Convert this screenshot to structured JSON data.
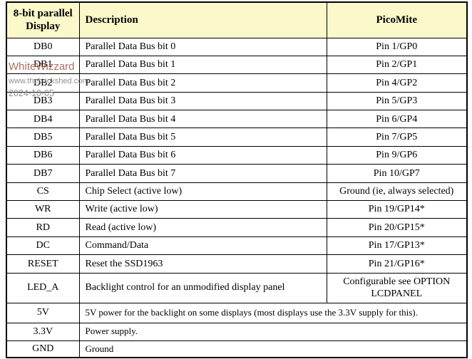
{
  "watermark": {
    "name": "WhiteWizzard",
    "site": "www.thebackshed.com",
    "date": "2024-10-05"
  },
  "table": {
    "headers": {
      "col1": "8-bit parallel Display",
      "col2": "Description",
      "col3": "PicoMite"
    },
    "rows": [
      {
        "signal": "DB0",
        "description": "Parallel Data Bus bit 0",
        "picomite": "Pin 1/GP0"
      },
      {
        "signal": "DB1",
        "description": "Parallel Data Bus bit 1",
        "picomite": "Pin 2/GP1"
      },
      {
        "signal": "DB2",
        "description": "Parallel Data Bus bit 2",
        "picomite": "Pin 4/GP2"
      },
      {
        "signal": "DB3",
        "description": "Parallel Data Bus bit 3",
        "picomite": "Pin 5/GP3"
      },
      {
        "signal": "DB4",
        "description": "Parallel Data Bus bit 4",
        "picomite": "Pin 6/GP4"
      },
      {
        "signal": "DB5",
        "description": "Parallel Data Bus bit 5",
        "picomite": "Pin 7/GP5"
      },
      {
        "signal": "DB6",
        "description": "Parallel Data Bus bit 6",
        "picomite": "Pin 9/GP6"
      },
      {
        "signal": "DB7",
        "description": "Parallel Data Bus bit 7",
        "picomite": "Pin 10/GP7"
      },
      {
        "signal": "CS",
        "description": "Chip Select (active low)",
        "picomite": "Ground (ie, always selected)"
      },
      {
        "signal": "WR",
        "description": "Write (active low)",
        "picomite": "Pin 19/GP14*"
      },
      {
        "signal": "RD",
        "description": "Read (active low)",
        "picomite": "Pin 20/GP15*"
      },
      {
        "signal": "DC",
        "description": "Command/Data",
        "picomite": "Pin 17/GP13*"
      },
      {
        "signal": "RESET",
        "description": "Reset the SSD1963",
        "picomite": "Pin 21/GP16*"
      },
      {
        "signal": "LED_A",
        "description": "Backlight control for an unmodified display panel",
        "picomite": "Configurable see OPTION LCDPANEL"
      },
      {
        "signal": "5V",
        "description": "5V power for the backlight on some displays (most displays use the 3.3V supply for this)."
      },
      {
        "signal": "3.3V",
        "description": "Power supply."
      },
      {
        "signal": "GND",
        "description": "Ground"
      }
    ]
  },
  "colors": {
    "header_bg": "#FBF9CA",
    "border": "#000000",
    "watermark_name": "#A85C52",
    "watermark_meta": "#8A8A8A"
  }
}
